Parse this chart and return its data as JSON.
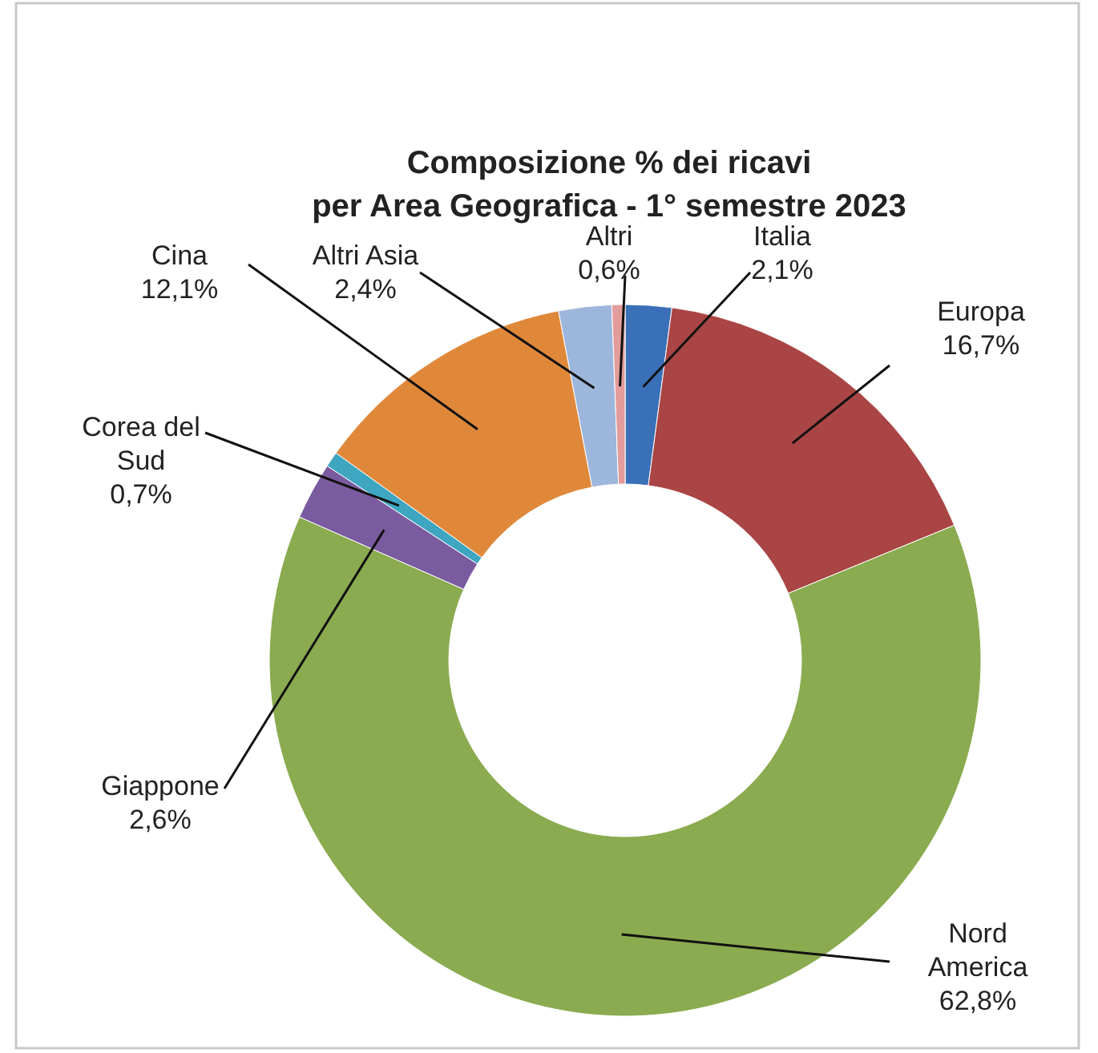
{
  "chart_data": {
    "type": "donut",
    "title": "Composizione % dei ricavi\nper Area Geografica - 1° semestre 2023",
    "categories": [
      "Italia",
      "Europa",
      "Nord America",
      "Giappone",
      "Corea del Sud",
      "Cina",
      "Altri Asia",
      "Altri"
    ],
    "values": [
      2.1,
      16.7,
      62.8,
      2.6,
      0.7,
      12.1,
      2.4,
      0.6
    ],
    "colors": [
      "#3a70b8",
      "#a94544",
      "#8aab4f",
      "#7a5b9f",
      "#3ea6c1",
      "#e0883a",
      "#9db6db",
      "#e39c9b"
    ],
    "value_labels": [
      "2,1%",
      "16,7%",
      "62,8%",
      "2,6%",
      "0,7%",
      "12,1%",
      "2,4%",
      "0,6%"
    ]
  }
}
